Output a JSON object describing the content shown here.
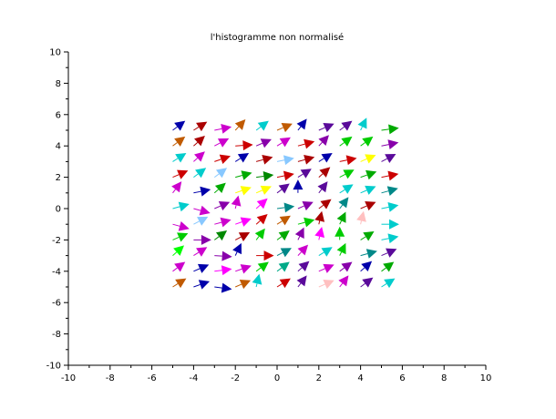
{
  "chart_data": {
    "type": "quiver",
    "title": "l'histogramme non normalisé",
    "xlabel": "",
    "ylabel": "",
    "xlim": [
      -10,
      10
    ],
    "ylim": [
      -10,
      10
    ],
    "xticks": [
      "-10",
      "-8",
      "-6",
      "-4",
      "-2",
      "0",
      "2",
      "4",
      "6",
      "8",
      "10"
    ],
    "yticks": [
      "-10",
      "-8",
      "-6",
      "-4",
      "-2",
      "0",
      "2",
      "4",
      "6",
      "8",
      "10"
    ],
    "grid": false,
    "arrow_length": 0.85,
    "x": [
      -5,
      -4,
      -3,
      -2,
      -1,
      0,
      1,
      2,
      3,
      4,
      5
    ],
    "y": [
      -5,
      -4,
      -3,
      -2,
      -1,
      0,
      1,
      2,
      3,
      4,
      5
    ],
    "angles_deg": [
      [
        40,
        25,
        -10,
        30,
        80,
        40,
        60,
        30,
        60,
        45,
        40
      ],
      [
        45,
        30,
        10,
        25,
        45,
        45,
        50,
        30,
        45,
        50,
        45
      ],
      [
        50,
        40,
        -5,
        70,
        0,
        35,
        55,
        40,
        70,
        20,
        30
      ],
      [
        30,
        0,
        45,
        35,
        60,
        45,
        70,
        80,
        90,
        40,
        15
      ],
      [
        -20,
        35,
        20,
        25,
        50,
        40,
        20,
        80,
        70,
        80,
        0
      ],
      [
        20,
        -20,
        30,
        80,
        50,
        10,
        30,
        45,
        60,
        30,
        15
      ],
      [
        60,
        15,
        50,
        25,
        30,
        45,
        90,
        60,
        40,
        30,
        20
      ],
      [
        30,
        45,
        45,
        20,
        10,
        15,
        40,
        50,
        35,
        25,
        15
      ],
      [
        40,
        50,
        25,
        40,
        20,
        15,
        20,
        40,
        15,
        30,
        35
      ],
      [
        45,
        50,
        35,
        5,
        30,
        40,
        20,
        55,
        45,
        45,
        15
      ],
      [
        45,
        40,
        15,
        55,
        45,
        30,
        60,
        30,
        45,
        70,
        10
      ]
    ],
    "colors": [
      [
        "#c05a00",
        "#0000aa",
        "#0000aa",
        "#c05a00",
        "#00cccc",
        "#cc0000",
        "#5a0a9a",
        "#ffc0c0",
        "#cc00cc",
        "#5a0a9a",
        "#00cccc"
      ],
      [
        "#cc00cc",
        "#0000aa",
        "#ff00ff",
        "#cc00cc",
        "#00cc00",
        "#00aa88",
        "#5a0a9a",
        "#cc00cc",
        "#8800aa",
        "#0000aa",
        "#00aa00"
      ],
      [
        "#00ff00",
        "#cc00cc",
        "#8800aa",
        "#0000aa",
        "#cc0000",
        "#008888",
        "#cc00cc",
        "#00cccc",
        "#00cc00",
        "#008888",
        "#5a0a9a"
      ],
      [
        "#00cc00",
        "#8800aa",
        "#008800",
        "#aa0000",
        "#00cc00",
        "#00aa00",
        "#8800aa",
        "#ff00ff",
        "#00cc00",
        "#00aa00",
        "#00cccc"
      ],
      [
        "#cc00cc",
        "#88c8ff",
        "#cc00cc",
        "#ff00ff",
        "#cc0000",
        "#c05a00",
        "#00cc00",
        "#aa0000",
        "#00aa00",
        "#ffc0c0",
        "#00cccc"
      ],
      [
        "#00cccc",
        "#cc00cc",
        "#8800aa",
        "#cc00cc",
        "#ff00ff",
        "#008888",
        "#8800aa",
        "#aa0000",
        "#008888",
        "#aa0000",
        "#00cccc"
      ],
      [
        "#cc00cc",
        "#0000aa",
        "#00aa00",
        "#ffff00",
        "#ffff00",
        "#5a0a9a",
        "#0000aa",
        "#5a0a9a",
        "#00cccc",
        "#00cccc",
        "#008888"
      ],
      [
        "#cc0000",
        "#00cccc",
        "#88c8ff",
        "#00aa00",
        "#008800",
        "#cc0000",
        "#5a0a9a",
        "#aa0000",
        "#00cc00",
        "#00aa00",
        "#cc0000"
      ],
      [
        "#00cccc",
        "#cc00cc",
        "#cc0000",
        "#0000aa",
        "#aa0000",
        "#88c8ff",
        "#aa0000",
        "#0000aa",
        "#cc0000",
        "#ffff00",
        "#5a0a9a"
      ],
      [
        "#c05a00",
        "#aa0000",
        "#cc00cc",
        "#cc0000",
        "#8800aa",
        "#cc00cc",
        "#cc0000",
        "#8800aa",
        "#00cc00",
        "#00cc00",
        "#8800aa"
      ],
      [
        "#0000aa",
        "#aa0000",
        "#cc00cc",
        "#c05a00",
        "#00cccc",
        "#c05a00",
        "#0000aa",
        "#5a0a9a",
        "#5a0a9a",
        "#00cccc",
        "#00aa00"
      ]
    ]
  }
}
